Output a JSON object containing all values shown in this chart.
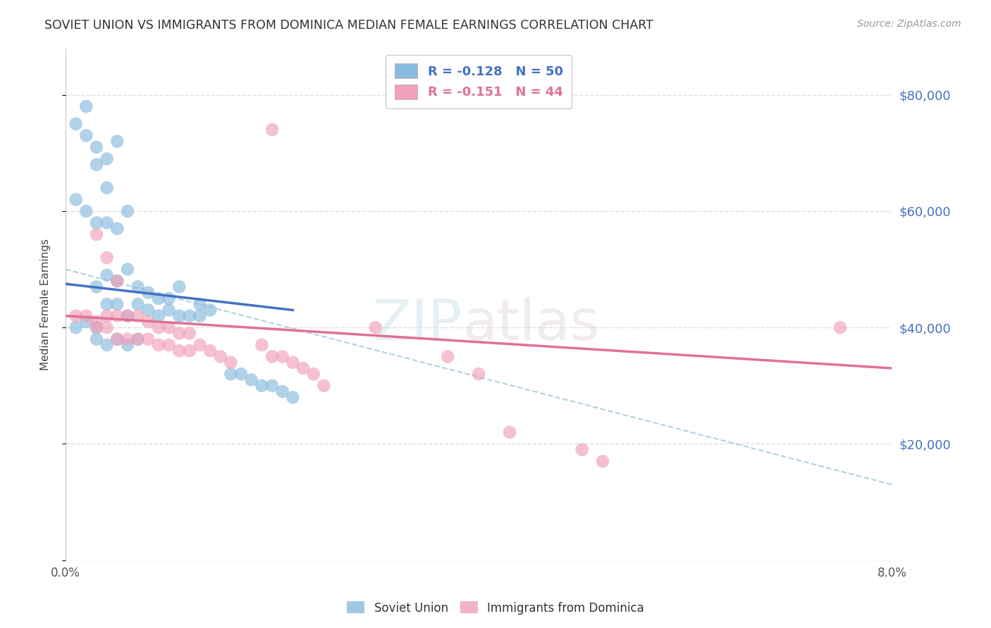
{
  "title": "SOVIET UNION VS IMMIGRANTS FROM DOMINICA MEDIAN FEMALE EARNINGS CORRELATION CHART",
  "source": "Source: ZipAtlas.com",
  "ylabel": "Median Female Earnings",
  "xlim": [
    0.0,
    0.08
  ],
  "ylim": [
    0,
    88000
  ],
  "watermark_zip": "ZIP",
  "watermark_atlas": "atlas",
  "legend_r1": "R = -0.128",
  "legend_n1": "N = 50",
  "legend_r2": "R = -0.151",
  "legend_n2": "N = 44",
  "title_color": "#333333",
  "source_color": "#999999",
  "soviet_color": "#88bbdd",
  "dominica_color": "#f0a0b8",
  "soviet_line_color": "#4472c4",
  "dominica_line_color": "#e07098",
  "dashed_line_color": "#aaccdd",
  "ytick_color": "#4472c4",
  "grid_color": "#dddddd",
  "background_color": "#ffffff",
  "soviet_line_x0": 0.0,
  "soviet_line_y0": 47500,
  "soviet_line_x1": 0.022,
  "soviet_line_y1": 43000,
  "dominica_line_x0": 0.0,
  "dominica_line_y0": 42000,
  "dominica_line_x1": 0.08,
  "dominica_line_y1": 33000,
  "dashed_line_x0": 0.0,
  "dashed_line_y0": 50000,
  "dashed_line_x1": 0.08,
  "dashed_line_y1": 13000,
  "soviet_x": [
    0.001,
    0.002,
    0.002,
    0.003,
    0.003,
    0.004,
    0.004,
    0.005,
    0.001,
    0.002,
    0.003,
    0.004,
    0.005,
    0.006,
    0.003,
    0.004,
    0.005,
    0.006,
    0.007,
    0.008,
    0.009,
    0.01,
    0.011,
    0.004,
    0.005,
    0.006,
    0.007,
    0.008,
    0.009,
    0.01,
    0.011,
    0.012,
    0.013,
    0.001,
    0.002,
    0.003,
    0.003,
    0.004,
    0.005,
    0.006,
    0.007,
    0.013,
    0.014,
    0.016,
    0.017,
    0.018,
    0.019,
    0.021,
    0.02,
    0.022
  ],
  "soviet_y": [
    75000,
    78000,
    73000,
    71000,
    68000,
    69000,
    64000,
    72000,
    62000,
    60000,
    58000,
    58000,
    57000,
    60000,
    47000,
    49000,
    48000,
    50000,
    47000,
    46000,
    45000,
    45000,
    47000,
    44000,
    44000,
    42000,
    44000,
    43000,
    42000,
    43000,
    42000,
    42000,
    42000,
    40000,
    41000,
    40000,
    38000,
    37000,
    38000,
    37000,
    38000,
    44000,
    43000,
    32000,
    32000,
    31000,
    30000,
    29000,
    30000,
    28000
  ],
  "dominica_x": [
    0.001,
    0.002,
    0.003,
    0.003,
    0.004,
    0.004,
    0.005,
    0.005,
    0.006,
    0.006,
    0.007,
    0.007,
    0.008,
    0.008,
    0.009,
    0.009,
    0.01,
    0.01,
    0.011,
    0.011,
    0.012,
    0.012,
    0.013,
    0.014,
    0.015,
    0.016,
    0.003,
    0.004,
    0.005,
    0.019,
    0.02,
    0.021,
    0.022,
    0.023,
    0.024,
    0.025,
    0.02,
    0.03,
    0.037,
    0.04,
    0.043,
    0.05,
    0.052,
    0.075
  ],
  "dominica_y": [
    42000,
    42000,
    41000,
    40000,
    42000,
    40000,
    42000,
    38000,
    42000,
    38000,
    42000,
    38000,
    41000,
    38000,
    40000,
    37000,
    40000,
    37000,
    39000,
    36000,
    39000,
    36000,
    37000,
    36000,
    35000,
    34000,
    56000,
    52000,
    48000,
    37000,
    35000,
    35000,
    34000,
    33000,
    32000,
    30000,
    74000,
    40000,
    35000,
    32000,
    22000,
    19000,
    17000,
    40000
  ]
}
